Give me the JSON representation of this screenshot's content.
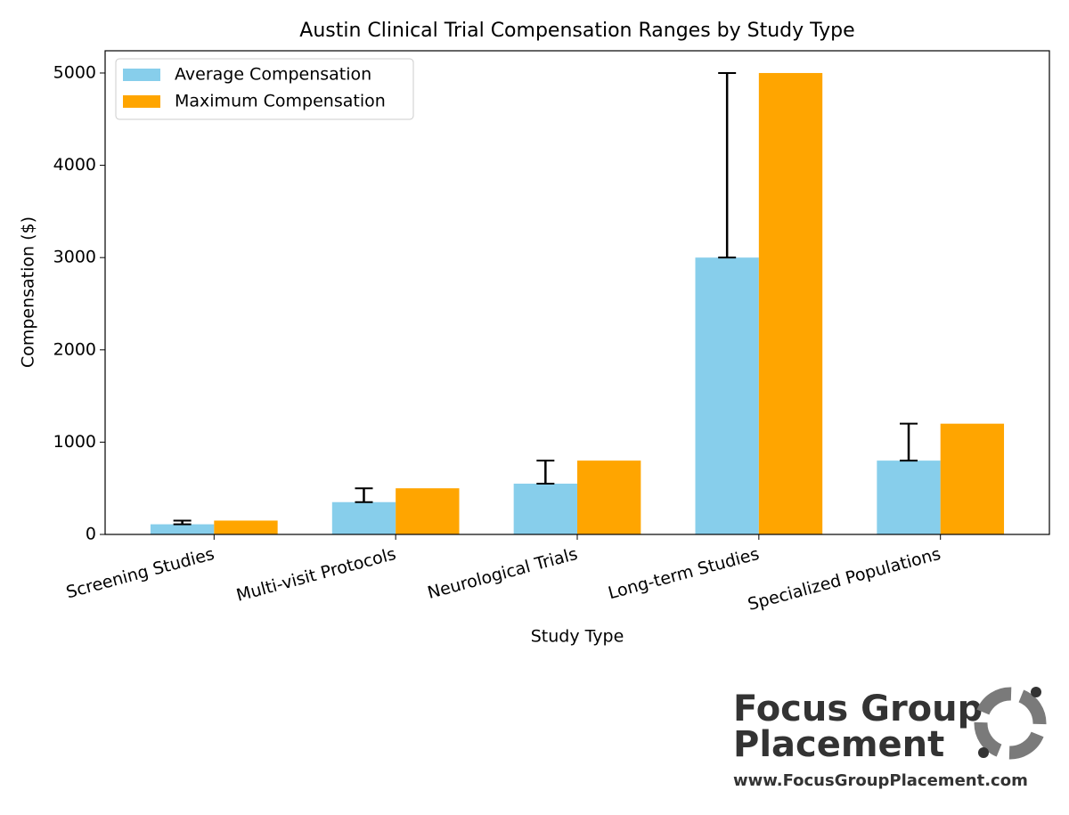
{
  "chart_data": {
    "type": "bar",
    "title": "Austin Clinical Trial Compensation Ranges by Study Type",
    "x_label": "Study Type",
    "y_label": "Compensation ($)",
    "categories": [
      "Screening Studies",
      "Multi-visit Protocols",
      "Neurological Trials",
      "Long-term Studies",
      "Specialized Populations"
    ],
    "series": [
      {
        "name": "Average Compensation",
        "color": "#87ceeb",
        "values": [
          110,
          350,
          550,
          3000,
          800
        ],
        "errors": [
          40,
          150,
          250,
          2000,
          400
        ]
      },
      {
        "name": "Maximum Compensation",
        "color": "#ffa500",
        "values": [
          150,
          500,
          800,
          5000,
          1200
        ]
      }
    ],
    "ylim": [
      0,
      5241
    ],
    "yticks": [
      0,
      1000,
      2000,
      3000,
      4000,
      5000
    ],
    "legend": "upper left",
    "grid": false
  },
  "watermark": {
    "line1": "Focus Group",
    "line2": "Placement",
    "url": "www.FocusGroupPlacement.com"
  }
}
